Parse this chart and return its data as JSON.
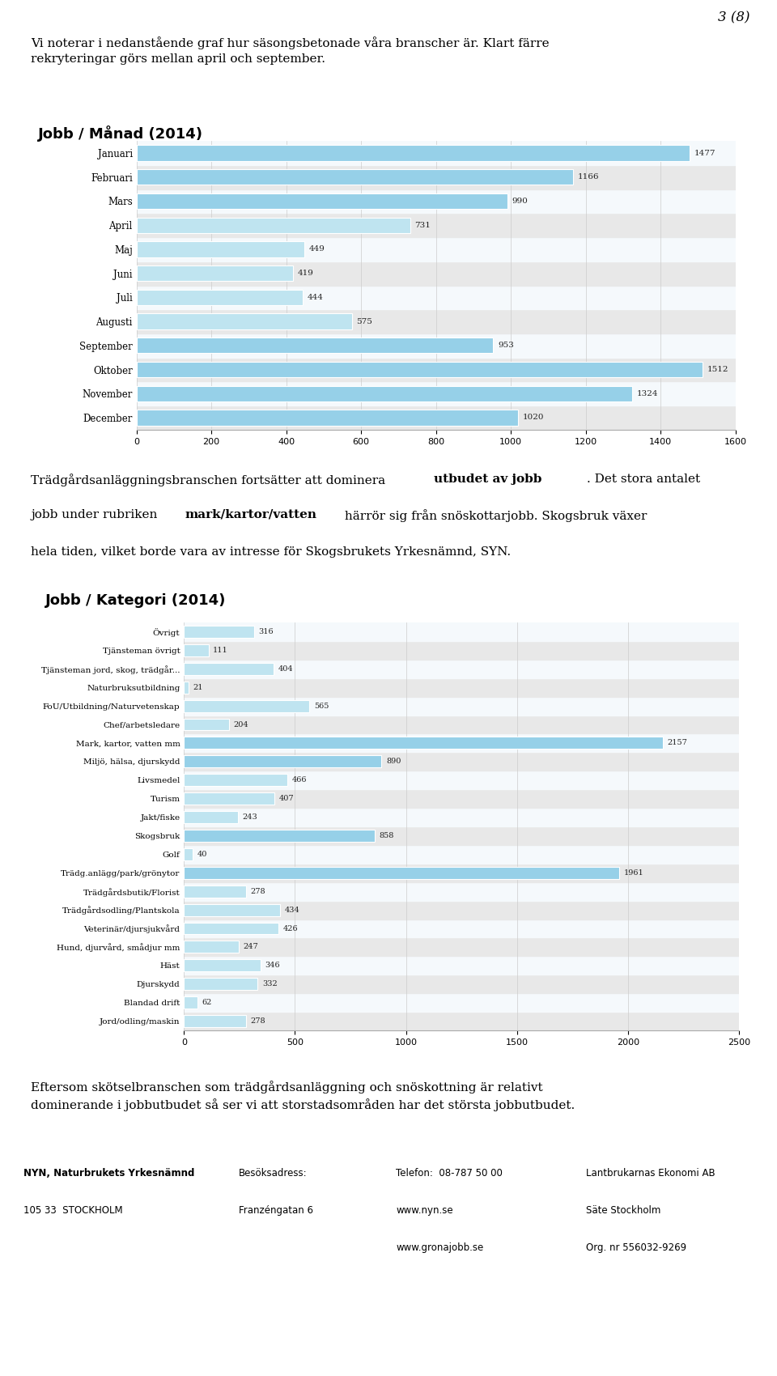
{
  "page_num": "3 (8)",
  "intro_text": "Vi noterar i nedanstående graf hur säsongsbetonade våra branscher är. Klart färre\nrekryteringar görs mellan april och september.",
  "chart1_title": "Jobb / Månad (2014)",
  "chart1_categories": [
    "Januari",
    "Februari",
    "Mars",
    "April",
    "Maj",
    "Juni",
    "Juli",
    "Augusti",
    "September",
    "Oktober",
    "November",
    "December"
  ],
  "chart1_values": [
    1477,
    1166,
    990,
    731,
    449,
    419,
    444,
    575,
    953,
    1512,
    1324,
    1020
  ],
  "chart1_xlim": [
    0,
    1600
  ],
  "chart1_xticks": [
    0,
    200,
    400,
    600,
    800,
    1000,
    1200,
    1400,
    1600
  ],
  "middle_text_line1": "Trädgårdsanläggningsbranschen fortsätter att dominera ",
  "middle_text_bold1": "utbudet av jobb",
  "middle_text_line1b": ". Det stora antalet",
  "middle_text_line2": "jobb under rubriken ",
  "middle_text_bold2": "mark/kartor/vatten",
  "middle_text_line2b": " härrör sig från snöskottarjobb. Skogsbruk växer",
  "middle_text_line3": "hela tiden, vilket borde vara av intresse för Skogsbrukets Yrkesnämnd, SYN.",
  "chart2_title": "Jobb / Kategori (2014)",
  "chart2_categories": [
    "Övrigt",
    "Tjänsteman övrigt",
    "Tjänsteman jord, skog, trädgår...",
    "Naturbruksutbildning",
    "FoU/Utbildning/Naturvetenskap",
    "Chef/arbetsledare",
    "Mark, kartor, vatten mm",
    "Miljö, hälsa, djurskydd",
    "Livsmedel",
    "Turism",
    "Jakt/fiske",
    "Skogsbruk",
    "Golf",
    "Trädg.anlägg/park/grönytor",
    "Trädgårdsbutik/Florist",
    "Trädgårdsodling/Plantskola",
    "Veterinär/djursjukvård",
    "Hund, djurvård, smådjur mm",
    "Häst",
    "Djurskydd",
    "Blandad drift",
    "Jord/odling/maskin"
  ],
  "chart2_values": [
    316,
    111,
    404,
    21,
    565,
    204,
    2157,
    890,
    466,
    407,
    243,
    858,
    40,
    1961,
    278,
    434,
    426,
    247,
    346,
    332,
    62,
    278
  ],
  "chart2_xlim": [
    0,
    2500
  ],
  "chart2_xticks": [
    0,
    500,
    1000,
    1500,
    2000,
    2500
  ],
  "bar_color_light": "#bfe4f0",
  "bar_color_dark": "#96d0e8",
  "row_bg_light": "#f5f5f5",
  "row_bg_dark": "#e8e8e8",
  "chart_bg": "#e8e8e8",
  "plot_bg": "#ffffff",
  "footer_left1": "NYN, Naturbrukets Yrkesnämnd",
  "footer_left2": "105 33  STOCKHOLM",
  "footer_mid1": "Besöksadress:",
  "footer_mid2": "Franzéngatan 6",
  "footer_phone1": "Telefon:  08-787 50 00",
  "footer_phone2": "www.nyn.se",
  "footer_phone3": "www.gronajobb.se",
  "footer_right1": "Lantbrukarnas Ekonomi AB",
  "footer_right2": "Säte Stockholm",
  "footer_right3": "Org. nr 556032-9269",
  "bottom_text": "Eftersom skötselbranschen som trädgårdsanläggning och snöskottning är relativt\ndominerande i jobbutbudet så ser vi att storstadsområden har det största jobbutbudet."
}
